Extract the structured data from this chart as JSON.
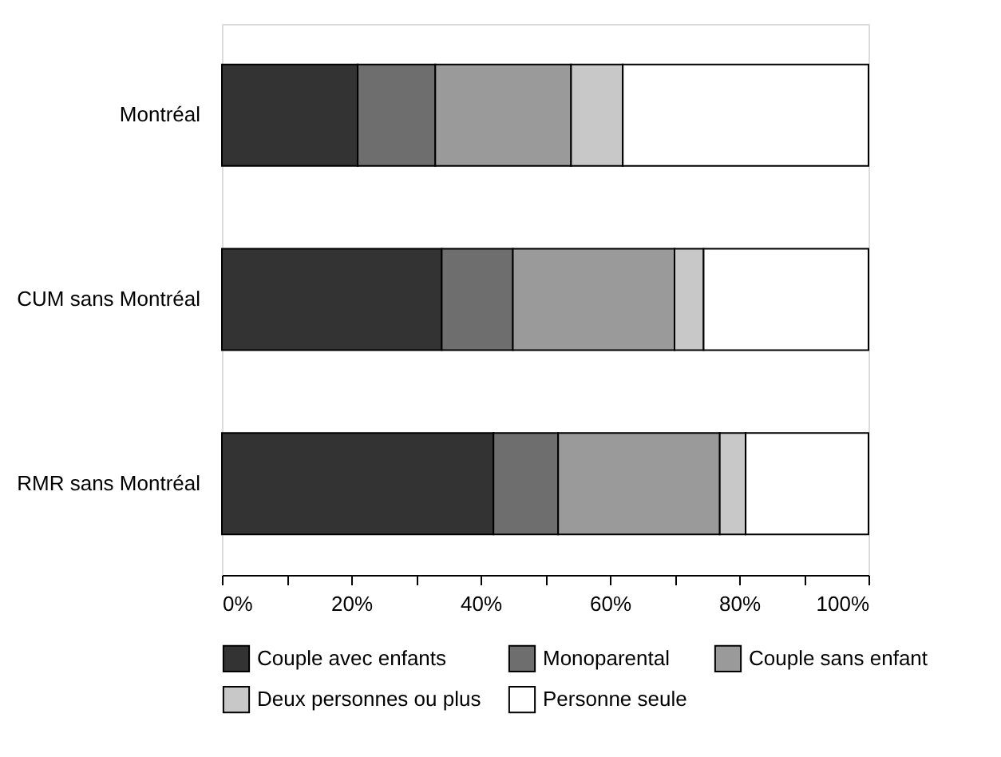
{
  "chart_data": {
    "type": "bar",
    "orientation": "horizontal",
    "stacked": true,
    "categories": [
      "Montréal",
      "CUM sans Montréal",
      "RMR sans Montréal"
    ],
    "series": [
      {
        "name": "Couple avec enfants",
        "color": "#333333",
        "values": [
          21,
          34,
          42
        ]
      },
      {
        "name": "Monoparental",
        "color": "#6e6e6e",
        "values": [
          12,
          11,
          10
        ]
      },
      {
        "name": "Couple sans enfant",
        "color": "#9a9a9a",
        "values": [
          21,
          25,
          25
        ]
      },
      {
        "name": "Deux personnes ou plus",
        "color": "#c8c8c8",
        "values": [
          8,
          4.5,
          4
        ]
      },
      {
        "name": "Personne seule",
        "color": "#ffffff",
        "values": [
          38,
          25.5,
          19
        ]
      }
    ],
    "xlim": [
      0,
      100
    ],
    "xticks": [
      {
        "value": 0,
        "label": "0%"
      },
      {
        "value": 10,
        "label": null
      },
      {
        "value": 20,
        "label": "20%"
      },
      {
        "value": 30,
        "label": null
      },
      {
        "value": 40,
        "label": "40%"
      },
      {
        "value": 50,
        "label": null
      },
      {
        "value": 60,
        "label": "60%"
      },
      {
        "value": 70,
        "label": null
      },
      {
        "value": 80,
        "label": "80%"
      },
      {
        "value": 90,
        "label": null
      },
      {
        "value": 100,
        "label": "100%"
      }
    ],
    "legend": "bottom",
    "grid": false
  }
}
